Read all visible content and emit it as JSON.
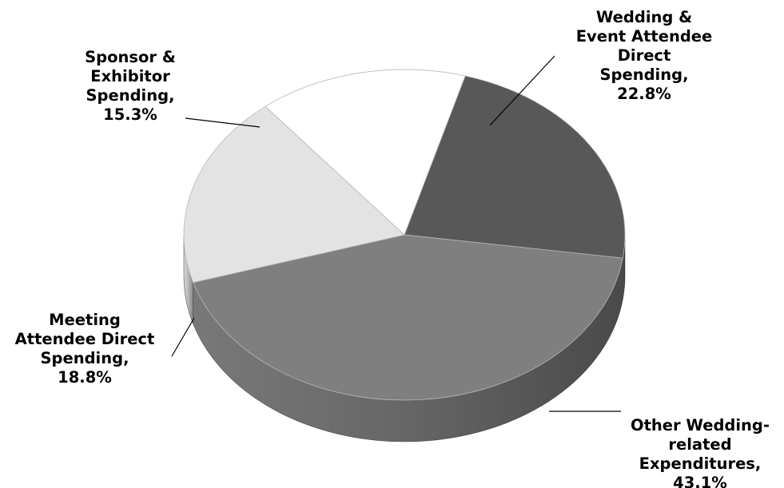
{
  "chart_data": {
    "type": "pie",
    "style": "3d",
    "legend": "none",
    "slices": [
      {
        "label_lines": [
          "Wedding &",
          "Event Attendee",
          "Direct",
          "Spending,"
        ],
        "value_text": "22.8%",
        "value": 22.8,
        "color": "#585858"
      },
      {
        "label_lines": [
          "Other Wedding-",
          "related",
          "Expenditures,"
        ],
        "value_text": "43.1%",
        "value": 43.1,
        "color": "#7f7f7f"
      },
      {
        "label_lines": [
          "Meeting",
          "Attendee Direct",
          "Spending,"
        ],
        "value_text": "18.8%",
        "value": 18.8,
        "color": "#e3e3e3"
      },
      {
        "label_lines": [
          "Sponsor &",
          "Exhibitor",
          "Spending,"
        ],
        "value_text": "15.3%",
        "value": 15.3,
        "color": "#ffffff"
      }
    ]
  }
}
